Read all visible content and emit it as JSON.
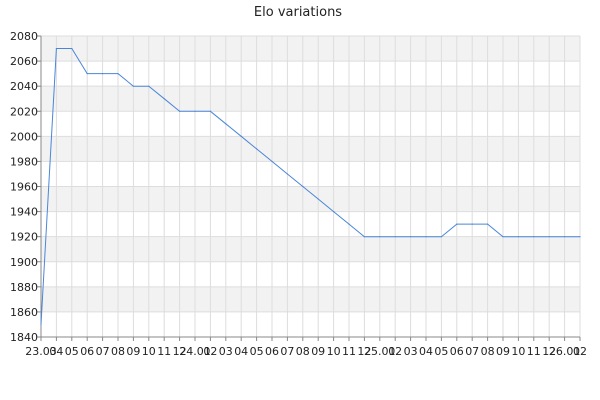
{
  "chart_data": {
    "type": "line",
    "title": "Elo variations",
    "xlabel": "",
    "ylabel": "",
    "ylim": [
      1840,
      2080
    ],
    "yticks": [
      1840,
      1860,
      1880,
      1900,
      1920,
      1940,
      1960,
      1980,
      2000,
      2020,
      2040,
      2060,
      2080
    ],
    "x_tick_labels": [
      "23.03",
      "04",
      "05",
      "06",
      "07",
      "08",
      "09",
      "10",
      "11",
      "12",
      "24.01",
      "02",
      "03",
      "04",
      "05",
      "06",
      "07",
      "08",
      "09",
      "10",
      "11",
      "12",
      "25.01",
      "02",
      "03",
      "04",
      "05",
      "06",
      "07",
      "08",
      "09",
      "10",
      "11",
      "12",
      "26.01",
      "02"
    ],
    "grid": true,
    "legend": "none",
    "colors": {
      "line": "#4a86d8",
      "band": "#f2f2f2",
      "grid": "#dddddd",
      "axis": "#888888"
    },
    "series": [
      {
        "x": [
          0,
          1,
          2,
          3,
          4,
          5,
          6,
          7,
          8,
          9,
          10,
          11,
          12,
          13,
          14,
          15,
          16,
          17,
          18,
          19,
          20,
          21,
          22,
          23,
          24,
          25,
          26,
          27,
          28,
          29,
          30,
          31,
          32,
          33,
          34,
          35
        ],
        "values": [
          1850,
          2070,
          2070,
          2050,
          2050,
          2050,
          2040,
          2040,
          2030,
          2020,
          2020,
          2020,
          2010,
          2000,
          1990,
          1980,
          1970,
          1960,
          1950,
          1940,
          1930,
          1920,
          1920,
          1920,
          1920,
          1920,
          1920,
          1930,
          1930,
          1930,
          1920,
          1920,
          1920,
          1920,
          1920,
          1920
        ]
      }
    ]
  }
}
